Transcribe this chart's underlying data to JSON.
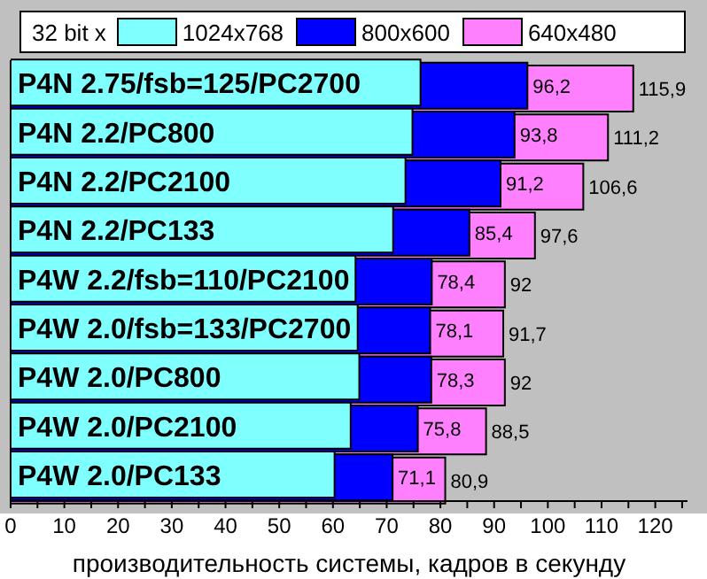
{
  "chart_data": {
    "type": "bar",
    "orientation": "horizontal",
    "stacked": false,
    "categories": [
      "P4N 2.75/fsb=125/PC2700",
      "P4N 2.2/PC800",
      "P4N 2.2/PC2100",
      "P4N 2.2/PC133",
      "P4W 2.2/fsb=110/PC2100",
      "P4W 2.0/fsb=133/PC2700",
      "P4W 2.0/PC800",
      "P4W 2.0/PC2100",
      "P4W 2.0/PC133"
    ],
    "series": [
      {
        "name": "1024x768",
        "color": "#80ffff",
        "values": [
          76.3,
          74.8,
          73.5,
          71.2,
          64.2,
          64.6,
          64.9,
          63.3,
          60.3
        ]
      },
      {
        "name": "800x600",
        "color": "#0000ff",
        "values": [
          96.2,
          93.8,
          91.2,
          85.4,
          78.4,
          78.1,
          78.3,
          75.8,
          71.1
        ],
        "value_labels": [
          "96,2",
          "93,8",
          "91,2",
          "85,4",
          "78,4",
          "78,1",
          "78,3",
          "75,8",
          "71,1"
        ]
      },
      {
        "name": "640x480",
        "color": "#ff80ff",
        "values": [
          115.9,
          111.2,
          106.6,
          97.6,
          92,
          91.7,
          92,
          88.5,
          80.9
        ],
        "value_labels": [
          "115,9",
          "111,2",
          "106,6",
          "97,6",
          "92",
          "91,7",
          "92",
          "88,5",
          "80,9"
        ]
      }
    ],
    "legend_title": "32 bit x",
    "legend": "top",
    "xlabel": "производительность системы, кадров в секунду",
    "xlim": [
      0,
      126
    ],
    "xticks": [
      0,
      {
        "value": 5,
        "label": null
      },
      10,
      {
        "value": 15,
        "label": null
      },
      20,
      {
        "value": 25,
        "label": null
      },
      30,
      {
        "value": 35,
        "label": null
      },
      40,
      {
        "value": 45,
        "label": null
      },
      50,
      {
        "value": 55,
        "label": null
      },
      60,
      {
        "value": 65,
        "label": null
      },
      70,
      {
        "value": 75,
        "label": null
      },
      80,
      {
        "value": 85,
        "label": null
      },
      90,
      {
        "value": 95,
        "label": null
      },
      100,
      {
        "value": 105,
        "label": null
      },
      110,
      {
        "value": 115,
        "label": null
      },
      120,
      {
        "value": 125,
        "label": null
      }
    ],
    "grid": false
  }
}
